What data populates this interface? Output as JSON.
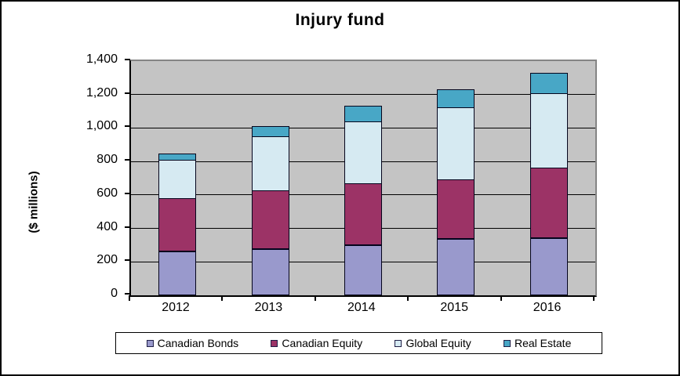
{
  "chart_data": {
    "type": "bar",
    "stacked": true,
    "title": "Injury fund",
    "xlabel": "",
    "ylabel": "($ millions)",
    "categories": [
      "2012",
      "2013",
      "2014",
      "2015",
      "2016"
    ],
    "series": [
      {
        "name": "Canadian Bonds",
        "color": "#9999CC",
        "values": [
          260,
          275,
          300,
          335,
          340
        ]
      },
      {
        "name": "Canadian Equity",
        "color": "#9C3366",
        "values": [
          315,
          350,
          365,
          355,
          420
        ]
      },
      {
        "name": "Global Equity",
        "color": "#D6EAF2",
        "values": [
          230,
          320,
          370,
          430,
          445
        ]
      },
      {
        "name": "Real Estate",
        "color": "#48A7C6",
        "values": [
          35,
          60,
          90,
          105,
          120
        ]
      }
    ],
    "totals": [
      840,
      1005,
      1125,
      1225,
      1325
    ],
    "ylim": [
      0,
      1400
    ],
    "ytick_step": 200,
    "ytick_labels": [
      "0",
      "200",
      "400",
      "600",
      "800",
      "1,000",
      "1,200",
      "1,400"
    ],
    "grid": true,
    "legend_position": "bottom",
    "plot_background": "#C4C4C4",
    "page_background": "#FFFFFF",
    "axis_color": "#000000"
  }
}
